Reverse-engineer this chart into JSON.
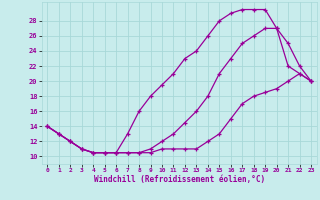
{
  "xlabel": "Windchill (Refroidissement éolien,°C)",
  "bg_color": "#c8ecec",
  "grid_color": "#a8d8d8",
  "line_color": "#990099",
  "xlim": [
    -0.5,
    23.5
  ],
  "ylim": [
    9,
    30.5
  ],
  "xticks": [
    0,
    1,
    2,
    3,
    4,
    5,
    6,
    7,
    8,
    9,
    10,
    11,
    12,
    13,
    14,
    15,
    16,
    17,
    18,
    19,
    20,
    21,
    22,
    23
  ],
  "yticks": [
    10,
    12,
    14,
    16,
    18,
    20,
    22,
    24,
    26,
    28
  ],
  "line1_x": [
    0,
    1,
    2,
    3,
    4,
    5,
    6,
    7,
    8,
    9,
    10,
    11,
    12,
    13,
    14,
    15,
    16,
    17,
    18,
    19,
    20,
    21,
    22,
    23
  ],
  "line1_y": [
    14,
    13,
    12,
    11,
    10.5,
    10.5,
    10.5,
    10.5,
    10.5,
    10.5,
    11,
    11,
    11,
    11,
    12,
    13,
    15,
    17,
    18,
    18.5,
    19,
    20,
    21,
    20
  ],
  "line2_x": [
    0,
    1,
    2,
    3,
    4,
    5,
    6,
    7,
    8,
    9,
    10,
    11,
    12,
    13,
    14,
    15,
    16,
    17,
    18,
    19,
    20,
    21,
    22,
    23
  ],
  "line2_y": [
    14,
    13,
    12,
    11,
    10.5,
    10.5,
    10.5,
    10.5,
    10.5,
    11,
    12,
    13,
    14.5,
    16,
    18,
    21,
    23,
    25,
    26,
    27,
    27,
    25,
    22,
    20
  ],
  "line3_x": [
    0,
    1,
    2,
    3,
    4,
    5,
    6,
    7,
    8,
    9,
    10,
    11,
    12,
    13,
    14,
    15,
    16,
    17,
    18,
    19,
    20,
    21,
    22,
    23
  ],
  "line3_y": [
    14,
    13,
    12,
    11,
    10.5,
    10.5,
    10.5,
    13,
    16,
    18,
    19.5,
    21,
    23,
    24,
    26,
    28,
    29,
    29.5,
    29.5,
    29.5,
    27,
    22,
    21,
    20
  ]
}
